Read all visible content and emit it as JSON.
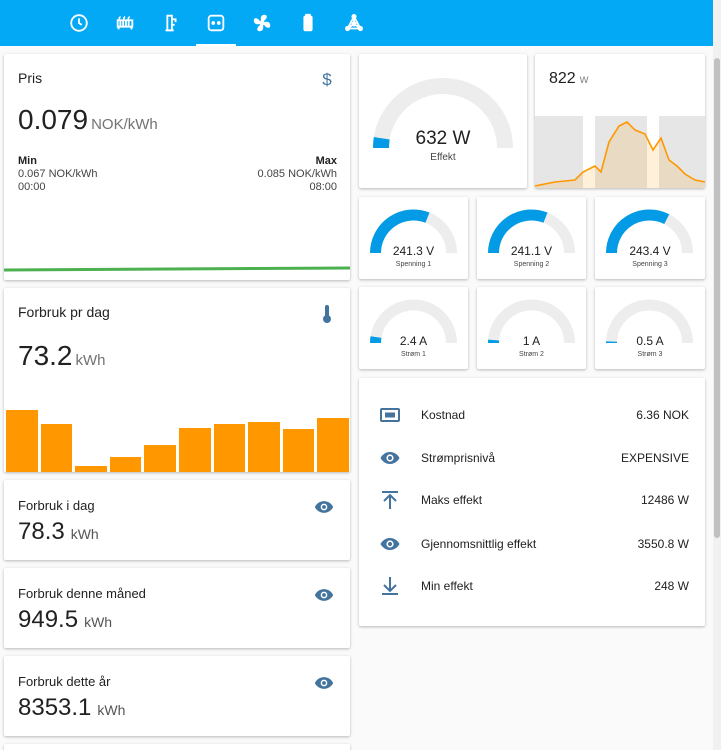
{
  "nav": {
    "tabs": [
      {
        "icon": "clock-icon"
      },
      {
        "icon": "radiator-icon"
      },
      {
        "icon": "water-heater-icon"
      },
      {
        "icon": "power-socket-icon",
        "active": true
      },
      {
        "icon": "fan-icon"
      },
      {
        "icon": "battery-icon"
      },
      {
        "icon": "network-icon"
      }
    ]
  },
  "price": {
    "title": "Pris",
    "value": "0.079",
    "unit": "NOK/kWh",
    "min_label": "Min",
    "min_value": "0.067 NOK/kWh",
    "min_time": "00:00",
    "max_label": "Max",
    "max_value": "0.085 NOK/kWh",
    "max_time": "08:00",
    "line_color": "#4caf50"
  },
  "daily": {
    "title": "Forbruk pr dag",
    "value": "73.2",
    "unit": "kWh",
    "bar_color": "#ff9800",
    "bars": [
      62,
      48,
      6,
      15,
      27,
      44,
      48,
      50,
      43,
      54
    ]
  },
  "stats": [
    {
      "title": "Forbruk i dag",
      "value": "78.3",
      "unit": "kWh"
    },
    {
      "title": "Forbruk denne måned",
      "value": "949.5",
      "unit": "kWh"
    },
    {
      "title": "Forbruk dette år",
      "value": "8353.1",
      "unit": "kWh"
    }
  ],
  "power_gauge": {
    "value": "632 W",
    "label": "Effekt",
    "fraction": 0.05
  },
  "power_graph": {
    "value": "822",
    "unit": "w",
    "line_color": "#ff9800"
  },
  "voltage": [
    {
      "value": "241.3 V",
      "label": "Spenning 1",
      "fraction": 0.62
    },
    {
      "value": "241.1 V",
      "label": "Spenning 2",
      "fraction": 0.62
    },
    {
      "value": "243.4 V",
      "label": "Spenning 3",
      "fraction": 0.65
    }
  ],
  "current": [
    {
      "value": "2.4 A",
      "label": "Strøm 1",
      "fraction": 0.05
    },
    {
      "value": "1 A",
      "label": "Strøm 2",
      "fraction": 0.025
    },
    {
      "value": "0.5 A",
      "label": "Strøm 3",
      "fraction": 0.012
    }
  ],
  "gauge_color": "#039be5",
  "entities": [
    {
      "icon": "currency-icon",
      "name": "Kostnad",
      "value": "6.36 NOK"
    },
    {
      "icon": "eye-icon",
      "name": "Strømprisnivå",
      "value": "EXPENSIVE"
    },
    {
      "icon": "arrow-up-icon",
      "name": "Maks effekt",
      "value": "12486 W"
    },
    {
      "icon": "eye-icon",
      "name": "Gjennomsnittlig effekt",
      "value": "3550.8 W"
    },
    {
      "icon": "arrow-down-icon",
      "name": "Min effekt",
      "value": "248 W"
    }
  ]
}
